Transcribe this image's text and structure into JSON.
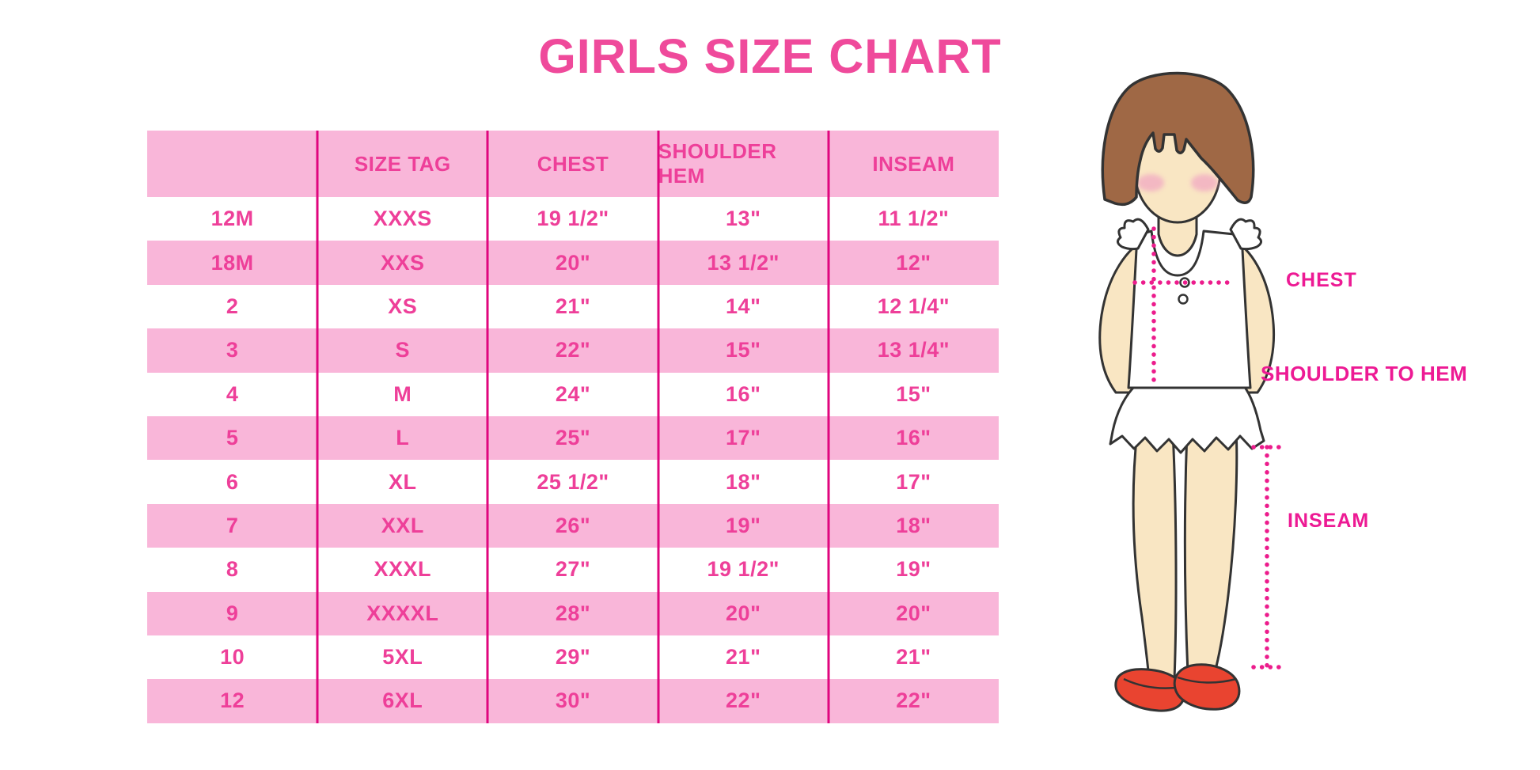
{
  "title": "GIRLS SIZE CHART",
  "chart_data": {
    "type": "table",
    "title": "GIRLS SIZE CHART",
    "columns": [
      "",
      "SIZE TAG",
      "CHEST",
      "SHOULDER HEM",
      "INSEAM"
    ],
    "rows": [
      [
        "12M",
        "XXXS",
        "19 1/2\"",
        "13\"",
        "11 1/2\""
      ],
      [
        "18M",
        "XXS",
        "20\"",
        "13 1/2\"",
        "12\""
      ],
      [
        "2",
        "XS",
        "21\"",
        "14\"",
        "12 1/4\""
      ],
      [
        "3",
        "S",
        "22\"",
        "15\"",
        "13 1/4\""
      ],
      [
        "4",
        "M",
        "24\"",
        "16\"",
        "15\""
      ],
      [
        "5",
        "L",
        "25\"",
        "17\"",
        "16\""
      ],
      [
        "6",
        "XL",
        "25 1/2\"",
        "18\"",
        "17\""
      ],
      [
        "7",
        "XXL",
        "26\"",
        "19\"",
        "18\""
      ],
      [
        "8",
        "XXXL",
        "27\"",
        "19 1/2\"",
        "19\""
      ],
      [
        "9",
        "XXXXL",
        "28\"",
        "20\"",
        "20\""
      ],
      [
        "10",
        "5XL",
        "29\"",
        "21\"",
        "21\""
      ],
      [
        "12",
        "6XL",
        "30\"",
        "22\"",
        "22\""
      ]
    ],
    "row_striping": "white / pink alternating, header pink",
    "annotations": [
      "CHEST",
      "SHOULDER TO HEM",
      "INSEAM"
    ]
  },
  "diagram": {
    "labels": {
      "chest": "CHEST",
      "shoulder_to_hem": "SHOULDER TO HEM",
      "inseam": "INSEAM"
    }
  },
  "colors": {
    "title_pink": "#EF4A9B",
    "cell_text_pink": "#EE3F99",
    "row_pink": "#F9B6D9",
    "divider_magenta": "#E0067E",
    "dotted_line_magenta": "#EC1C8C",
    "label_magenta": "#ED1A94",
    "hair_brown": "#9F6845",
    "skin": "#F9E6C3",
    "shoe_red": "#E94430",
    "outline": "#333333"
  }
}
